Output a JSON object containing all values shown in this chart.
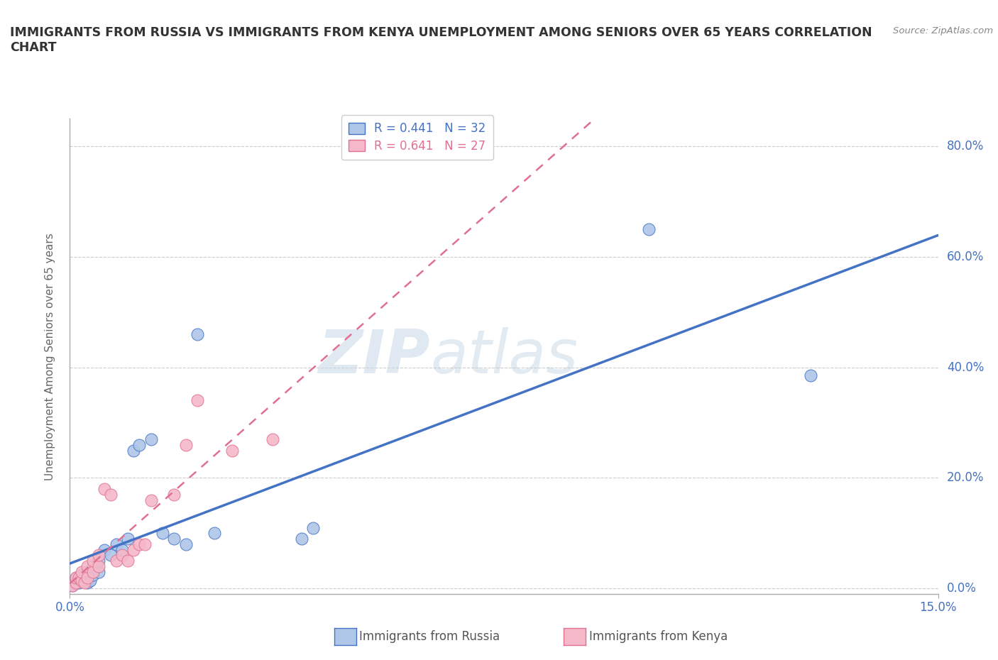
{
  "title": "IMMIGRANTS FROM RUSSIA VS IMMIGRANTS FROM KENYA UNEMPLOYMENT AMONG SENIORS OVER 65 YEARS CORRELATION\nCHART",
  "source": "Source: ZipAtlas.com",
  "legend_russia": "Immigrants from Russia",
  "legend_kenya": "Immigrants from Kenya",
  "ylabel": "Unemployment Among Seniors over 65 years",
  "russia_fill_color": "#aec6e8",
  "kenya_fill_color": "#f4b8c8",
  "russia_edge_color": "#4472c4",
  "kenya_edge_color": "#e07090",
  "russia_line_color": "#4472c4",
  "kenya_line_color": "#e07090",
  "russia_R": 0.441,
  "russia_N": 32,
  "kenya_R": 0.641,
  "kenya_N": 27,
  "xlim": [
    0.0,
    0.15
  ],
  "ylim": [
    -0.01,
    0.85
  ],
  "ytick_values": [
    0.0,
    0.2,
    0.4,
    0.6,
    0.8
  ],
  "ytick_labels": [
    "0.0%",
    "20.0%",
    "40.0%",
    "60.0%",
    "80.0%"
  ],
  "russia_scatter_x": [
    0.0005,
    0.001,
    0.001,
    0.0015,
    0.002,
    0.002,
    0.0025,
    0.003,
    0.003,
    0.003,
    0.0035,
    0.004,
    0.004,
    0.005,
    0.005,
    0.006,
    0.007,
    0.008,
    0.009,
    0.01,
    0.011,
    0.012,
    0.014,
    0.016,
    0.018,
    0.02,
    0.022,
    0.025,
    0.04,
    0.042,
    0.1,
    0.128
  ],
  "russia_scatter_y": [
    0.005,
    0.01,
    0.02,
    0.01,
    0.015,
    0.025,
    0.02,
    0.01,
    0.02,
    0.03,
    0.015,
    0.025,
    0.04,
    0.03,
    0.05,
    0.07,
    0.06,
    0.08,
    0.07,
    0.09,
    0.25,
    0.26,
    0.27,
    0.1,
    0.09,
    0.08,
    0.46,
    0.1,
    0.09,
    0.11,
    0.65,
    0.385
  ],
  "kenya_scatter_x": [
    0.0005,
    0.001,
    0.001,
    0.0015,
    0.002,
    0.002,
    0.0025,
    0.003,
    0.003,
    0.004,
    0.004,
    0.005,
    0.005,
    0.006,
    0.007,
    0.008,
    0.009,
    0.01,
    0.011,
    0.012,
    0.013,
    0.014,
    0.018,
    0.02,
    0.022,
    0.028,
    0.035
  ],
  "kenya_scatter_y": [
    0.005,
    0.01,
    0.02,
    0.02,
    0.015,
    0.03,
    0.01,
    0.02,
    0.04,
    0.03,
    0.05,
    0.04,
    0.06,
    0.18,
    0.17,
    0.05,
    0.06,
    0.05,
    0.07,
    0.08,
    0.08,
    0.16,
    0.17,
    0.26,
    0.34,
    0.25,
    0.27
  ],
  "watermark_zip": "ZIP",
  "watermark_atlas": "atlas",
  "background_color": "#ffffff",
  "grid_color": "#cccccc",
  "tick_color": "#4472c4",
  "axis_color": "#aaaaaa"
}
